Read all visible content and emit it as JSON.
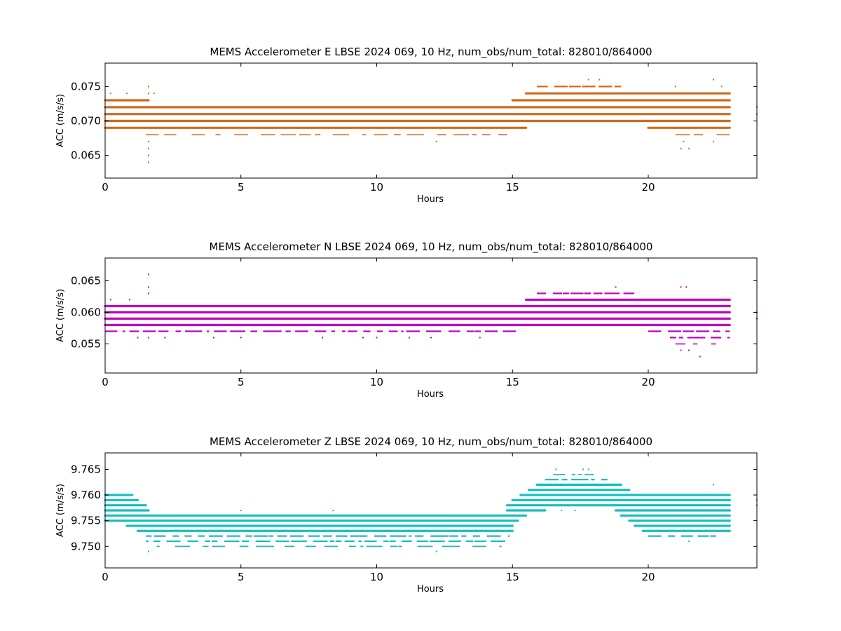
{
  "chart_data": [
    {
      "type": "scatter",
      "title": "MEMS Accelerometer E LBSE 2024 069, 10 Hz, num_obs/num_total: 828010/864000",
      "xlabel": "Hours",
      "ylabel": "ACC (m/s/s)",
      "xlim": [
        0,
        24
      ],
      "ylim": [
        0.0617,
        0.0784
      ],
      "xticks": [
        0,
        5,
        10,
        15,
        20
      ],
      "xtick_labels": [
        "0",
        "5",
        "10",
        "15",
        "20"
      ],
      "yticks": [
        0.065,
        0.07,
        0.075
      ],
      "ytick_labels": [
        "0.065",
        "0.070",
        "0.075"
      ],
      "color": "#d2691e",
      "grid": false,
      "bands": [
        {
          "y": 0.074,
          "segments": [
            [
              15.5,
              23.0
            ]
          ],
          "density": "dense"
        },
        {
          "y": 0.073,
          "segments": [
            [
              0.0,
              1.6
            ],
            [
              15.0,
              23.0
            ]
          ],
          "density": "dense"
        },
        {
          "y": 0.072,
          "segments": [
            [
              0.0,
              23.0
            ]
          ],
          "density": "dense"
        },
        {
          "y": 0.071,
          "segments": [
            [
              0.0,
              23.0
            ]
          ],
          "density": "dense"
        },
        {
          "y": 0.07,
          "segments": [
            [
              0.0,
              23.0
            ]
          ],
          "density": "dense"
        },
        {
          "y": 0.069,
          "segments": [
            [
              0.0,
              15.5
            ],
            [
              20.0,
              23.0
            ]
          ],
          "density": "dense"
        },
        {
          "y": 0.068,
          "segments": [
            [
              1.5,
              14.8
            ],
            [
              21.0,
              23.0
            ]
          ],
          "density": "sparse"
        },
        {
          "y": 0.075,
          "segments": [
            [
              15.9,
              19.0
            ]
          ],
          "density": "medium"
        }
      ],
      "points": [
        {
          "x": 1.6,
          "y": 0.064
        },
        {
          "x": 1.6,
          "y": 0.065
        },
        {
          "x": 1.6,
          "y": 0.066
        },
        {
          "x": 1.6,
          "y": 0.067
        },
        {
          "x": 1.6,
          "y": 0.075
        },
        {
          "x": 1.8,
          "y": 0.074
        },
        {
          "x": 0.2,
          "y": 0.074
        },
        {
          "x": 0.8,
          "y": 0.074
        },
        {
          "x": 1.6,
          "y": 0.074
        },
        {
          "x": 12.2,
          "y": 0.067
        },
        {
          "x": 17.8,
          "y": 0.076
        },
        {
          "x": 18.2,
          "y": 0.076
        },
        {
          "x": 21.2,
          "y": 0.066
        },
        {
          "x": 21.5,
          "y": 0.066
        },
        {
          "x": 21.3,
          "y": 0.067
        },
        {
          "x": 22.4,
          "y": 0.067
        },
        {
          "x": 22.4,
          "y": 0.076
        },
        {
          "x": 21.0,
          "y": 0.075
        },
        {
          "x": 22.7,
          "y": 0.075
        },
        {
          "x": 24.0,
          "y": 0.071
        },
        {
          "x": 24.0,
          "y": 0.072
        }
      ]
    },
    {
      "type": "scatter",
      "title": "MEMS Accelerometer N LBSE 2024 069, 10 Hz, num_obs/num_total: 828010/864000",
      "xlabel": "Hours",
      "ylabel": "ACC (m/s/s)",
      "xlim": [
        0,
        24
      ],
      "ylim": [
        0.0504,
        0.0686
      ],
      "xticks": [
        0,
        5,
        10,
        15,
        20
      ],
      "xtick_labels": [
        "0",
        "5",
        "10",
        "15",
        "20"
      ],
      "yticks": [
        0.055,
        0.06,
        0.065
      ],
      "ytick_labels": [
        "0.055",
        "0.060",
        "0.065"
      ],
      "color": "#bf00bf",
      "grid": false,
      "bands": [
        {
          "y": 0.063,
          "segments": [
            [
              15.9,
              19.5
            ]
          ],
          "density": "medium"
        },
        {
          "y": 0.062,
          "segments": [
            [
              15.5,
              23.0
            ]
          ],
          "density": "dense"
        },
        {
          "y": 0.061,
          "segments": [
            [
              0.0,
              23.0
            ]
          ],
          "density": "dense"
        },
        {
          "y": 0.06,
          "segments": [
            [
              0.0,
              23.0
            ]
          ],
          "density": "dense"
        },
        {
          "y": 0.059,
          "segments": [
            [
              0.0,
              23.0
            ]
          ],
          "density": "dense"
        },
        {
          "y": 0.058,
          "segments": [
            [
              0.0,
              23.0
            ]
          ],
          "density": "dense"
        },
        {
          "y": 0.057,
          "segments": [
            [
              0.0,
              15.2
            ],
            [
              20.0,
              23.0
            ]
          ],
          "density": "medium"
        },
        {
          "y": 0.056,
          "segments": [
            [
              20.8,
              23.0
            ]
          ],
          "density": "medium"
        },
        {
          "y": 0.055,
          "segments": [
            [
              21.0,
              22.5
            ]
          ],
          "density": "sparse"
        }
      ],
      "points": [
        {
          "x": 1.6,
          "y": 0.066
        },
        {
          "x": 1.6,
          "y": 0.064
        },
        {
          "x": 1.6,
          "y": 0.063
        },
        {
          "x": 0.2,
          "y": 0.062
        },
        {
          "x": 0.9,
          "y": 0.062
        },
        {
          "x": 1.2,
          "y": 0.056
        },
        {
          "x": 1.6,
          "y": 0.056
        },
        {
          "x": 2.2,
          "y": 0.056
        },
        {
          "x": 4.0,
          "y": 0.056
        },
        {
          "x": 5.0,
          "y": 0.056
        },
        {
          "x": 8.0,
          "y": 0.056
        },
        {
          "x": 9.5,
          "y": 0.056
        },
        {
          "x": 10.0,
          "y": 0.056
        },
        {
          "x": 11.2,
          "y": 0.056
        },
        {
          "x": 12.0,
          "y": 0.056
        },
        {
          "x": 13.8,
          "y": 0.056
        },
        {
          "x": 18.8,
          "y": 0.064
        },
        {
          "x": 21.2,
          "y": 0.064
        },
        {
          "x": 21.4,
          "y": 0.064
        },
        {
          "x": 21.2,
          "y": 0.054
        },
        {
          "x": 21.5,
          "y": 0.054
        },
        {
          "x": 21.9,
          "y": 0.053
        },
        {
          "x": 24.0,
          "y": 0.06
        },
        {
          "x": 24.0,
          "y": 0.059
        },
        {
          "x": 17.0,
          "y": 0.058
        },
        {
          "x": 18.0,
          "y": 0.058
        }
      ]
    },
    {
      "type": "scatter",
      "title": "MEMS Accelerometer Z LBSE 2024 069, 10 Hz, num_obs/num_total: 828010/864000",
      "xlabel": "Hours",
      "ylabel": "ACC (m/s/s)",
      "xlim": [
        0,
        24
      ],
      "ylim": [
        9.7458,
        9.7682
      ],
      "xticks": [
        0,
        5,
        10,
        15,
        20
      ],
      "xtick_labels": [
        "0",
        "5",
        "10",
        "15",
        "20"
      ],
      "yticks": [
        9.75,
        9.755,
        9.76,
        9.765
      ],
      "ytick_labels": [
        "9.750",
        "9.755",
        "9.760",
        "9.765"
      ],
      "color": "#17bfbf",
      "grid": false,
      "bands": [
        {
          "y": 9.764,
          "segments": [
            [
              16.5,
              18.0
            ]
          ],
          "density": "sparse"
        },
        {
          "y": 9.763,
          "segments": [
            [
              16.2,
              18.5
            ]
          ],
          "density": "medium"
        },
        {
          "y": 9.762,
          "segments": [
            [
              15.9,
              19.0
            ]
          ],
          "density": "dense"
        },
        {
          "y": 9.761,
          "segments": [
            [
              15.6,
              19.3
            ]
          ],
          "density": "dense"
        },
        {
          "y": 9.76,
          "segments": [
            [
              0.0,
              1.0
            ],
            [
              15.3,
              23.0
            ]
          ],
          "density": "dense"
        },
        {
          "y": 9.759,
          "segments": [
            [
              0.0,
              1.2
            ],
            [
              15.0,
              23.0
            ]
          ],
          "density": "dense"
        },
        {
          "y": 9.758,
          "segments": [
            [
              0.0,
              1.5
            ],
            [
              14.8,
              23.0
            ]
          ],
          "density": "dense"
        },
        {
          "y": 9.757,
          "segments": [
            [
              0.0,
              1.6
            ],
            [
              14.8,
              16.2
            ],
            [
              18.8,
              23.0
            ]
          ],
          "density": "dense"
        },
        {
          "y": 9.756,
          "segments": [
            [
              0.0,
              15.5
            ],
            [
              19.0,
              23.0
            ]
          ],
          "density": "dense"
        },
        {
          "y": 9.755,
          "segments": [
            [
              0.0,
              15.2
            ],
            [
              19.3,
              23.0
            ]
          ],
          "density": "dense"
        },
        {
          "y": 9.754,
          "segments": [
            [
              0.8,
              15.0
            ],
            [
              19.5,
              23.0
            ]
          ],
          "density": "dense"
        },
        {
          "y": 9.753,
          "segments": [
            [
              1.2,
              15.0
            ],
            [
              19.8,
              23.0
            ]
          ],
          "density": "dense"
        },
        {
          "y": 9.752,
          "segments": [
            [
              1.5,
              14.9
            ],
            [
              20.0,
              22.5
            ]
          ],
          "density": "medium"
        },
        {
          "y": 9.751,
          "segments": [
            [
              1.5,
              14.8
            ]
          ],
          "density": "medium"
        },
        {
          "y": 9.75,
          "segments": [
            [
              1.9,
              14.6
            ]
          ],
          "density": "sparse"
        }
      ],
      "points": [
        {
          "x": 1.6,
          "y": 9.749
        },
        {
          "x": 12.2,
          "y": 9.749
        },
        {
          "x": 5.0,
          "y": 9.757
        },
        {
          "x": 8.4,
          "y": 9.757
        },
        {
          "x": 16.6,
          "y": 9.765
        },
        {
          "x": 17.6,
          "y": 9.765
        },
        {
          "x": 17.8,
          "y": 9.765
        },
        {
          "x": 22.4,
          "y": 9.762
        },
        {
          "x": 24.0,
          "y": 9.758
        },
        {
          "x": 24.0,
          "y": 9.759
        },
        {
          "x": 16.8,
          "y": 9.757
        },
        {
          "x": 17.3,
          "y": 9.757
        },
        {
          "x": 22.4,
          "y": 9.752
        },
        {
          "x": 21.5,
          "y": 9.751
        },
        {
          "x": 20.1,
          "y": 9.752
        }
      ]
    }
  ]
}
